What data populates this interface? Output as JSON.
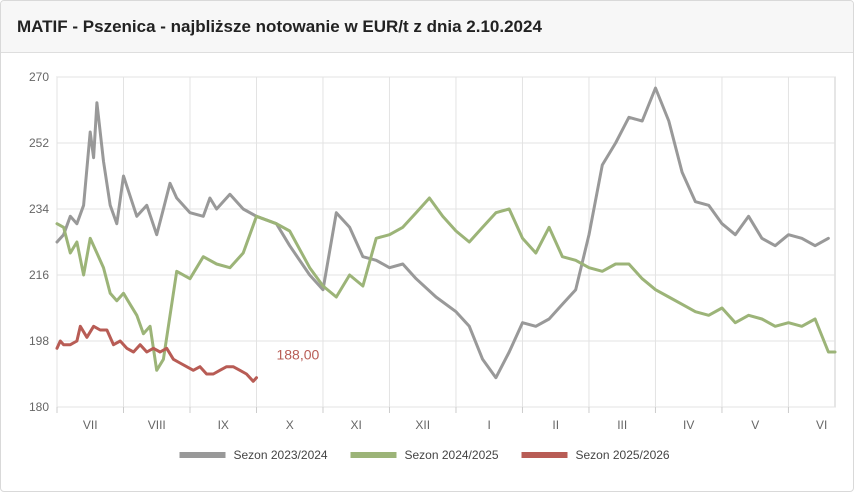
{
  "header": {
    "title": "MATIF - Pszenica - najbliższe notowanie w EUR/t z dnia 2.10.2024"
  },
  "chart_data": {
    "type": "line",
    "title": "MATIF - Pszenica - najbliższe notowanie w EUR/t z dnia 2.10.2024",
    "xlabel": "",
    "ylabel": "",
    "ylim": [
      180,
      270
    ],
    "y_ticks": [
      "270",
      "252",
      "234",
      "216",
      "198",
      "180"
    ],
    "x_months": [
      "VII",
      "VIII",
      "IX",
      "X",
      "XI",
      "XII",
      "I",
      "II",
      "III",
      "IV",
      "V",
      "VI"
    ],
    "x_range_months": [
      0,
      11.7
    ],
    "grid": true,
    "legend_position": "bottom",
    "last_value_label": "188,00",
    "series": [
      {
        "name": "Sezon 2023/2024",
        "color": "#999999",
        "x": [
          0,
          0.1,
          0.2,
          0.3,
          0.4,
          0.5,
          0.55,
          0.6,
          0.7,
          0.8,
          0.9,
          1.0,
          1.2,
          1.35,
          1.5,
          1.6,
          1.7,
          1.8,
          2.0,
          2.2,
          2.3,
          2.4,
          2.6,
          2.8,
          3.0,
          3.3,
          3.5,
          3.8,
          4.0,
          4.2,
          4.4,
          4.6,
          4.8,
          5.0,
          5.2,
          5.4,
          5.7,
          6.0,
          6.2,
          6.4,
          6.6,
          6.8,
          7.0,
          7.2,
          7.4,
          7.6,
          7.8,
          8.0,
          8.2,
          8.4,
          8.6,
          8.8,
          9.0,
          9.2,
          9.4,
          9.6,
          9.8,
          10.0,
          10.2,
          10.4,
          10.6,
          10.8,
          11.0,
          11.2,
          11.4,
          11.6
        ],
        "values": [
          225,
          227,
          232,
          230,
          235,
          255,
          248,
          263,
          247,
          235,
          230,
          243,
          232,
          235,
          227,
          234,
          241,
          237,
          233,
          232,
          237,
          234,
          238,
          234,
          232,
          230,
          224,
          216,
          212,
          233,
          229,
          221,
          220,
          218,
          219,
          215,
          210,
          206,
          202,
          193,
          188,
          195,
          203,
          202,
          204,
          208,
          212,
          227,
          246,
          252,
          259,
          258,
          267,
          258,
          244,
          236,
          235,
          230,
          227,
          232,
          226,
          224,
          227,
          226,
          224,
          226
        ],
        "dash": false
      },
      {
        "name": "Sezon 2024/2025",
        "color": "#9cb478",
        "x": [
          0,
          0.1,
          0.2,
          0.3,
          0.4,
          0.5,
          0.6,
          0.7,
          0.8,
          0.9,
          1.0,
          1.1,
          1.2,
          1.3,
          1.4,
          1.5,
          1.6,
          1.8,
          2.0,
          2.2,
          2.4,
          2.6,
          2.8,
          3.0,
          3.3,
          3.5,
          3.8,
          4.0,
          4.2,
          4.4,
          4.6,
          4.8,
          5.0,
          5.2,
          5.4,
          5.6,
          5.8,
          6.0,
          6.2,
          6.4,
          6.6,
          6.8,
          7.0,
          7.2,
          7.4,
          7.6,
          7.8,
          8.0,
          8.2,
          8.4,
          8.6,
          8.8,
          9.0,
          9.2,
          9.4,
          9.6,
          9.8,
          10.0,
          10.2,
          10.4,
          10.6,
          10.8,
          11.0,
          11.2,
          11.4,
          11.6,
          11.7
        ],
        "values": [
          230,
          229,
          222,
          225,
          216,
          226,
          222,
          218,
          211,
          209,
          211,
          208,
          205,
          200,
          202,
          190,
          193,
          217,
          215,
          221,
          219,
          218,
          222,
          232,
          230,
          228,
          218,
          213,
          210,
          216,
          213,
          226,
          227,
          229,
          233,
          237,
          232,
          228,
          225,
          229,
          233,
          234,
          226,
          222,
          229,
          221,
          220,
          218,
          217,
          219,
          219,
          215,
          212,
          210,
          208,
          206,
          205,
          207,
          203,
          205,
          204,
          202,
          203,
          202,
          204,
          195,
          195
        ],
        "dash": false
      },
      {
        "name": "Sezon 2025/2026",
        "color": "#b85c55",
        "x": [
          0,
          0.05,
          0.1,
          0.2,
          0.3,
          0.35,
          0.45,
          0.55,
          0.65,
          0.75,
          0.85,
          0.95,
          1.05,
          1.15,
          1.25,
          1.35,
          1.45,
          1.55,
          1.65,
          1.75,
          1.85,
          1.95,
          2.05,
          2.15,
          2.25,
          2.35,
          2.45,
          2.55,
          2.65,
          2.75,
          2.85,
          2.95,
          3.0
        ],
        "values": [
          196,
          198,
          197,
          197,
          198,
          202,
          199,
          202,
          201,
          201,
          197,
          198,
          196,
          195,
          197,
          195,
          196,
          195,
          196,
          193,
          192,
          191,
          190,
          191,
          189,
          189,
          190,
          191,
          191,
          190,
          189,
          187,
          188
        ],
        "dash": false
      }
    ]
  }
}
